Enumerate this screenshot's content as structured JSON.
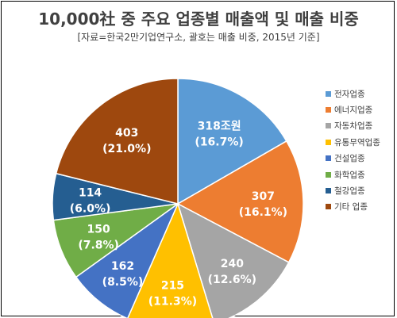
{
  "title": "10,000社 중 주요 업종별 매출액 및 매출 비중",
  "subtitle": "[자료=한국2만기업연구소, 괄호는 매출 비중, 2015년 기준]",
  "chart_data": {
    "type": "pie",
    "title": "10,000社 중 주요 업종별 매출액 및 매출 비중",
    "subtitle": "[자료=한국2만기업연구소, 괄호는 매출 비중, 2015년 기준]",
    "legend_position": "right",
    "slices": [
      {
        "name": "전자업종",
        "value": 318,
        "label": "318조원",
        "percent_label": "(16.7%)",
        "color": "#5B9BD5"
      },
      {
        "name": "에너지업종",
        "value": 307,
        "label": "307",
        "percent_label": "(16.1%)",
        "color": "#ED7D31"
      },
      {
        "name": "자동차업종",
        "value": 240,
        "label": "240",
        "percent_label": "(12.6%)",
        "color": "#A5A5A5"
      },
      {
        "name": "유통무역업종",
        "value": 215,
        "label": "215",
        "percent_label": "(11.3%)",
        "color": "#FFC000"
      },
      {
        "name": "건설업종",
        "value": 162,
        "label": "162",
        "percent_label": "(8.5%)",
        "color": "#4472C4"
      },
      {
        "name": "화학업종",
        "value": 150,
        "label": "150",
        "percent_label": "(7.8%)",
        "color": "#70AD47"
      },
      {
        "name": "철강업종",
        "value": 114,
        "label": "114",
        "percent_label": "(6.0%)",
        "color": "#255E91"
      },
      {
        "name": "기타 업종",
        "value": 403,
        "label": "403",
        "percent_label": "(21.0%)",
        "color": "#9E480E"
      }
    ]
  }
}
